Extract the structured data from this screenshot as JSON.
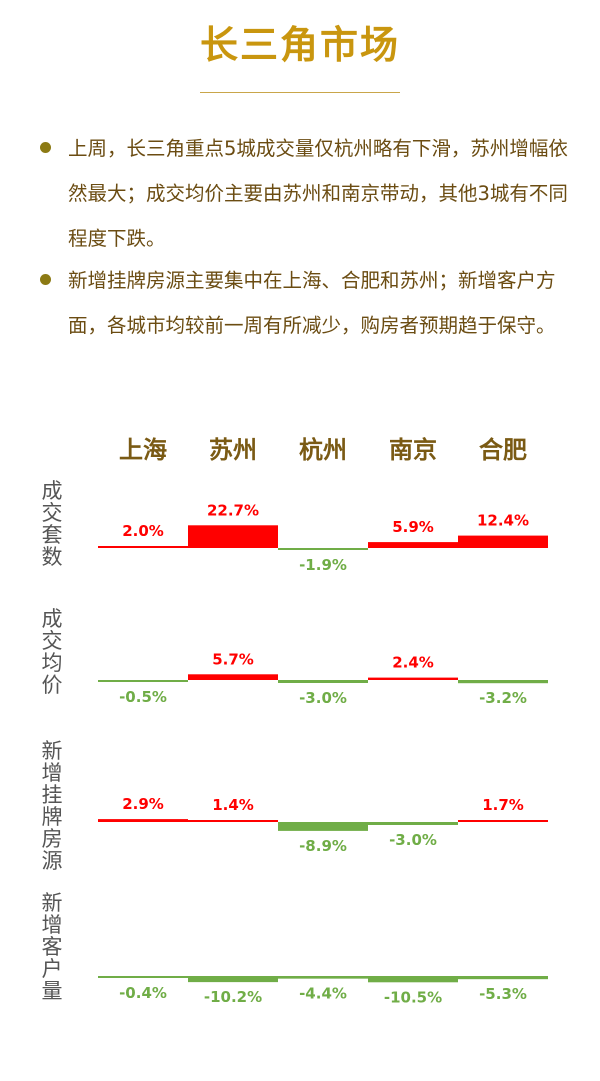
{
  "header": {
    "title": "长三角市场"
  },
  "bullets": [
    "上周，长三角重点5城成交量仅杭州略有下滑，苏州增幅依然最大；成交均价主要由苏州和南京带动，其他3城有不同程度下跌。",
    "新增挂牌房源主要集中在上海、合肥和苏州；新增客户方面，各城市均较前一周有所减少，购房者预期趋于保守。"
  ],
  "colors": {
    "title": "#c9960f",
    "text": "#6b4c12",
    "city": "#7a5a14",
    "metric": "#555555",
    "positive": "#ff0000",
    "negative": "#70ad47"
  },
  "chart_data": {
    "type": "bar",
    "categories": [
      "上海",
      "苏州",
      "杭州",
      "南京",
      "合肥"
    ],
    "unit": "%",
    "panels": [
      {
        "label": "成交套数",
        "values": [
          2.0,
          22.7,
          -1.9,
          5.9,
          12.4
        ],
        "labels": [
          "2.0%",
          "22.7%",
          "-1.9%",
          "5.9%",
          "12.4%"
        ]
      },
      {
        "label": "成交均价",
        "values": [
          -0.5,
          5.7,
          -3.0,
          2.4,
          -3.2
        ],
        "labels": [
          "-0.5%",
          "5.7%",
          "-3.0%",
          "2.4%",
          "-3.2%"
        ]
      },
      {
        "label": "新增挂牌房源",
        "values": [
          2.9,
          1.4,
          -8.9,
          -3.0,
          1.7
        ],
        "labels": [
          "2.9%",
          "1.4%",
          "-8.9%",
          "-3.0%",
          "1.7%"
        ]
      },
      {
        "label": "新增客户量",
        "values": [
          -0.4,
          -10.2,
          -4.4,
          -10.5,
          -5.3
        ],
        "labels": [
          "-0.4%",
          "-10.2%",
          "-4.4%",
          "-10.5%",
          "-5.3%"
        ]
      }
    ]
  }
}
